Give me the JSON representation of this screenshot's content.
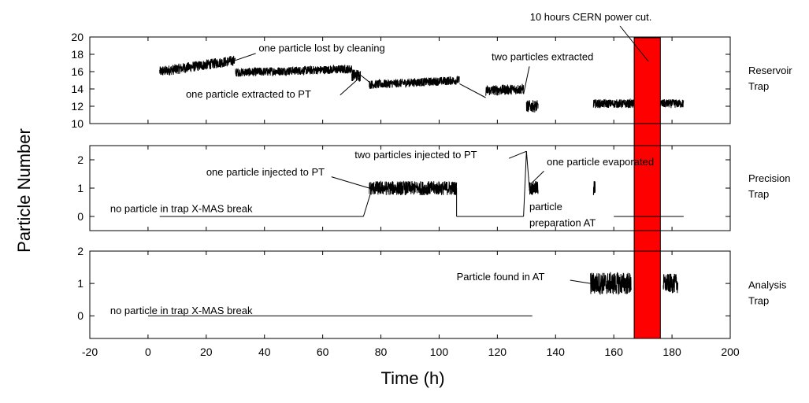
{
  "chart_data": {
    "type": "line",
    "xlabel": "Time (h)",
    "ylabel": "Particle Number",
    "xlim": [
      -20,
      200
    ],
    "xticks": [
      "-20",
      "0",
      "20",
      "40",
      "60",
      "80",
      "100",
      "120",
      "140",
      "160",
      "180",
      "200"
    ],
    "highlight": {
      "label": "10 hours CERN power cut.",
      "x_range": [
        167,
        176
      ],
      "color": "#ff0000"
    },
    "panels": [
      {
        "name": "Reservoir Trap",
        "label_lines": [
          "Reservoir",
          "Trap"
        ],
        "ylim": [
          10,
          20
        ],
        "yticks": [
          "10",
          "12",
          "14",
          "16",
          "18",
          "20"
        ],
        "color": "#000000",
        "segments": [
          {
            "x": [
              4,
              30
            ],
            "y": [
              16.0,
              17.3
            ],
            "noise": 0.6
          },
          {
            "x": [
              30,
              70
            ],
            "y": [
              15.9,
              16.3
            ],
            "noise": 0.5
          },
          {
            "x": [
              70,
              73
            ],
            "y": [
              15.6,
              15.6
            ],
            "noise": 0.7
          },
          {
            "x": [
              76,
              107
            ],
            "y": [
              14.5,
              15.0
            ],
            "noise": 0.5
          },
          {
            "x": [
              116,
              129
            ],
            "y": [
              13.8,
              14.0
            ],
            "noise": 0.6
          },
          {
            "x": [
              130,
              134
            ],
            "y": [
              12.0,
              12.0
            ],
            "noise": 0.7
          },
          {
            "x": [
              153,
              167
            ],
            "y": [
              12.3,
              12.3
            ],
            "noise": 0.5
          },
          {
            "x": [
              176,
              184
            ],
            "y": [
              12.3,
              12.3
            ],
            "noise": 0.5
          }
        ],
        "lines": [
          {
            "x": [
              107,
              116
            ],
            "y": [
              14.6,
              13.0
            ]
          },
          {
            "x": [
              73,
              76
            ],
            "y": [
              15.6,
              14.8
            ]
          }
        ],
        "annotations": [
          {
            "text": "one particle lost by cleaning",
            "x": 38,
            "y": 18.3
          },
          {
            "text": "one particle extracted to PT",
            "x": 13,
            "y": 13.0
          },
          {
            "text": "two particles extracted",
            "x": 118,
            "y": 17.3
          }
        ]
      },
      {
        "name": "Precision Trap",
        "label_lines": [
          "Precision",
          "Trap"
        ],
        "ylim": [
          -0.5,
          2.5
        ],
        "yticks": [
          "0",
          "1",
          "2"
        ],
        "color": "#000000",
        "segments": [
          {
            "x": [
              76,
              106
            ],
            "y": [
              1.0,
              1.0
            ],
            "noise": 0.25
          },
          {
            "x": [
              131,
              134
            ],
            "y": [
              1.0,
              1.0
            ],
            "noise": 0.25
          },
          {
            "x": [
              153,
              153.6
            ],
            "y": [
              1.0,
              1.0
            ],
            "noise": 0.3
          }
        ],
        "lines": [
          {
            "x": [
              4,
              74
            ],
            "y": [
              0,
              0
            ]
          },
          {
            "x": [
              74,
              77
            ],
            "y": [
              0,
              1.0
            ]
          },
          {
            "x": [
              106,
              106
            ],
            "y": [
              1.0,
              0
            ]
          },
          {
            "x": [
              106,
              129
            ],
            "y": [
              0,
              0
            ]
          },
          {
            "x": [
              129,
              130
            ],
            "y": [
              0,
              2.3
            ]
          },
          {
            "x": [
              130,
              131
            ],
            "y": [
              2.3,
              1.0
            ]
          },
          {
            "x": [
              160,
              184
            ],
            "y": [
              0,
              0
            ]
          }
        ],
        "annotations": [
          {
            "text": "no particle in trap X-MAS break",
            "x": -13,
            "y": 0.15
          },
          {
            "text": "one particle injected to PT",
            "x": 20,
            "y": 1.45
          },
          {
            "text": "two particles injected to PT",
            "x": 71,
            "y": 2.05
          },
          {
            "text": "one particle evaporated",
            "x": 137,
            "y": 1.8
          },
          {
            "text": "particle",
            "x": 131,
            "y": 0.22
          },
          {
            "text": "preparation AT",
            "x": 131,
            "y": -0.35
          }
        ]
      },
      {
        "name": "Analysis Trap",
        "label_lines": [
          "Analysis",
          "Trap"
        ],
        "ylim": [
          -0.7,
          2.0
        ],
        "yticks": [
          "0",
          "1",
          "2"
        ],
        "color": "#000000",
        "segments": [
          {
            "x": [
              152,
              166
            ],
            "y": [
              1.0,
              1.0
            ],
            "noise": 0.35
          },
          {
            "x": [
              177,
              182
            ],
            "y": [
              1.0,
              1.0
            ],
            "noise": 0.3
          }
        ],
        "lines": [
          {
            "x": [
              0,
              132
            ],
            "y": [
              0,
              0
            ]
          }
        ],
        "annotations": [
          {
            "text": "no particle in trap X-MAS break",
            "x": -13,
            "y": 0.05
          },
          {
            "text": "Particle found in AT",
            "x": 106,
            "y": 1.1
          }
        ]
      }
    ]
  }
}
